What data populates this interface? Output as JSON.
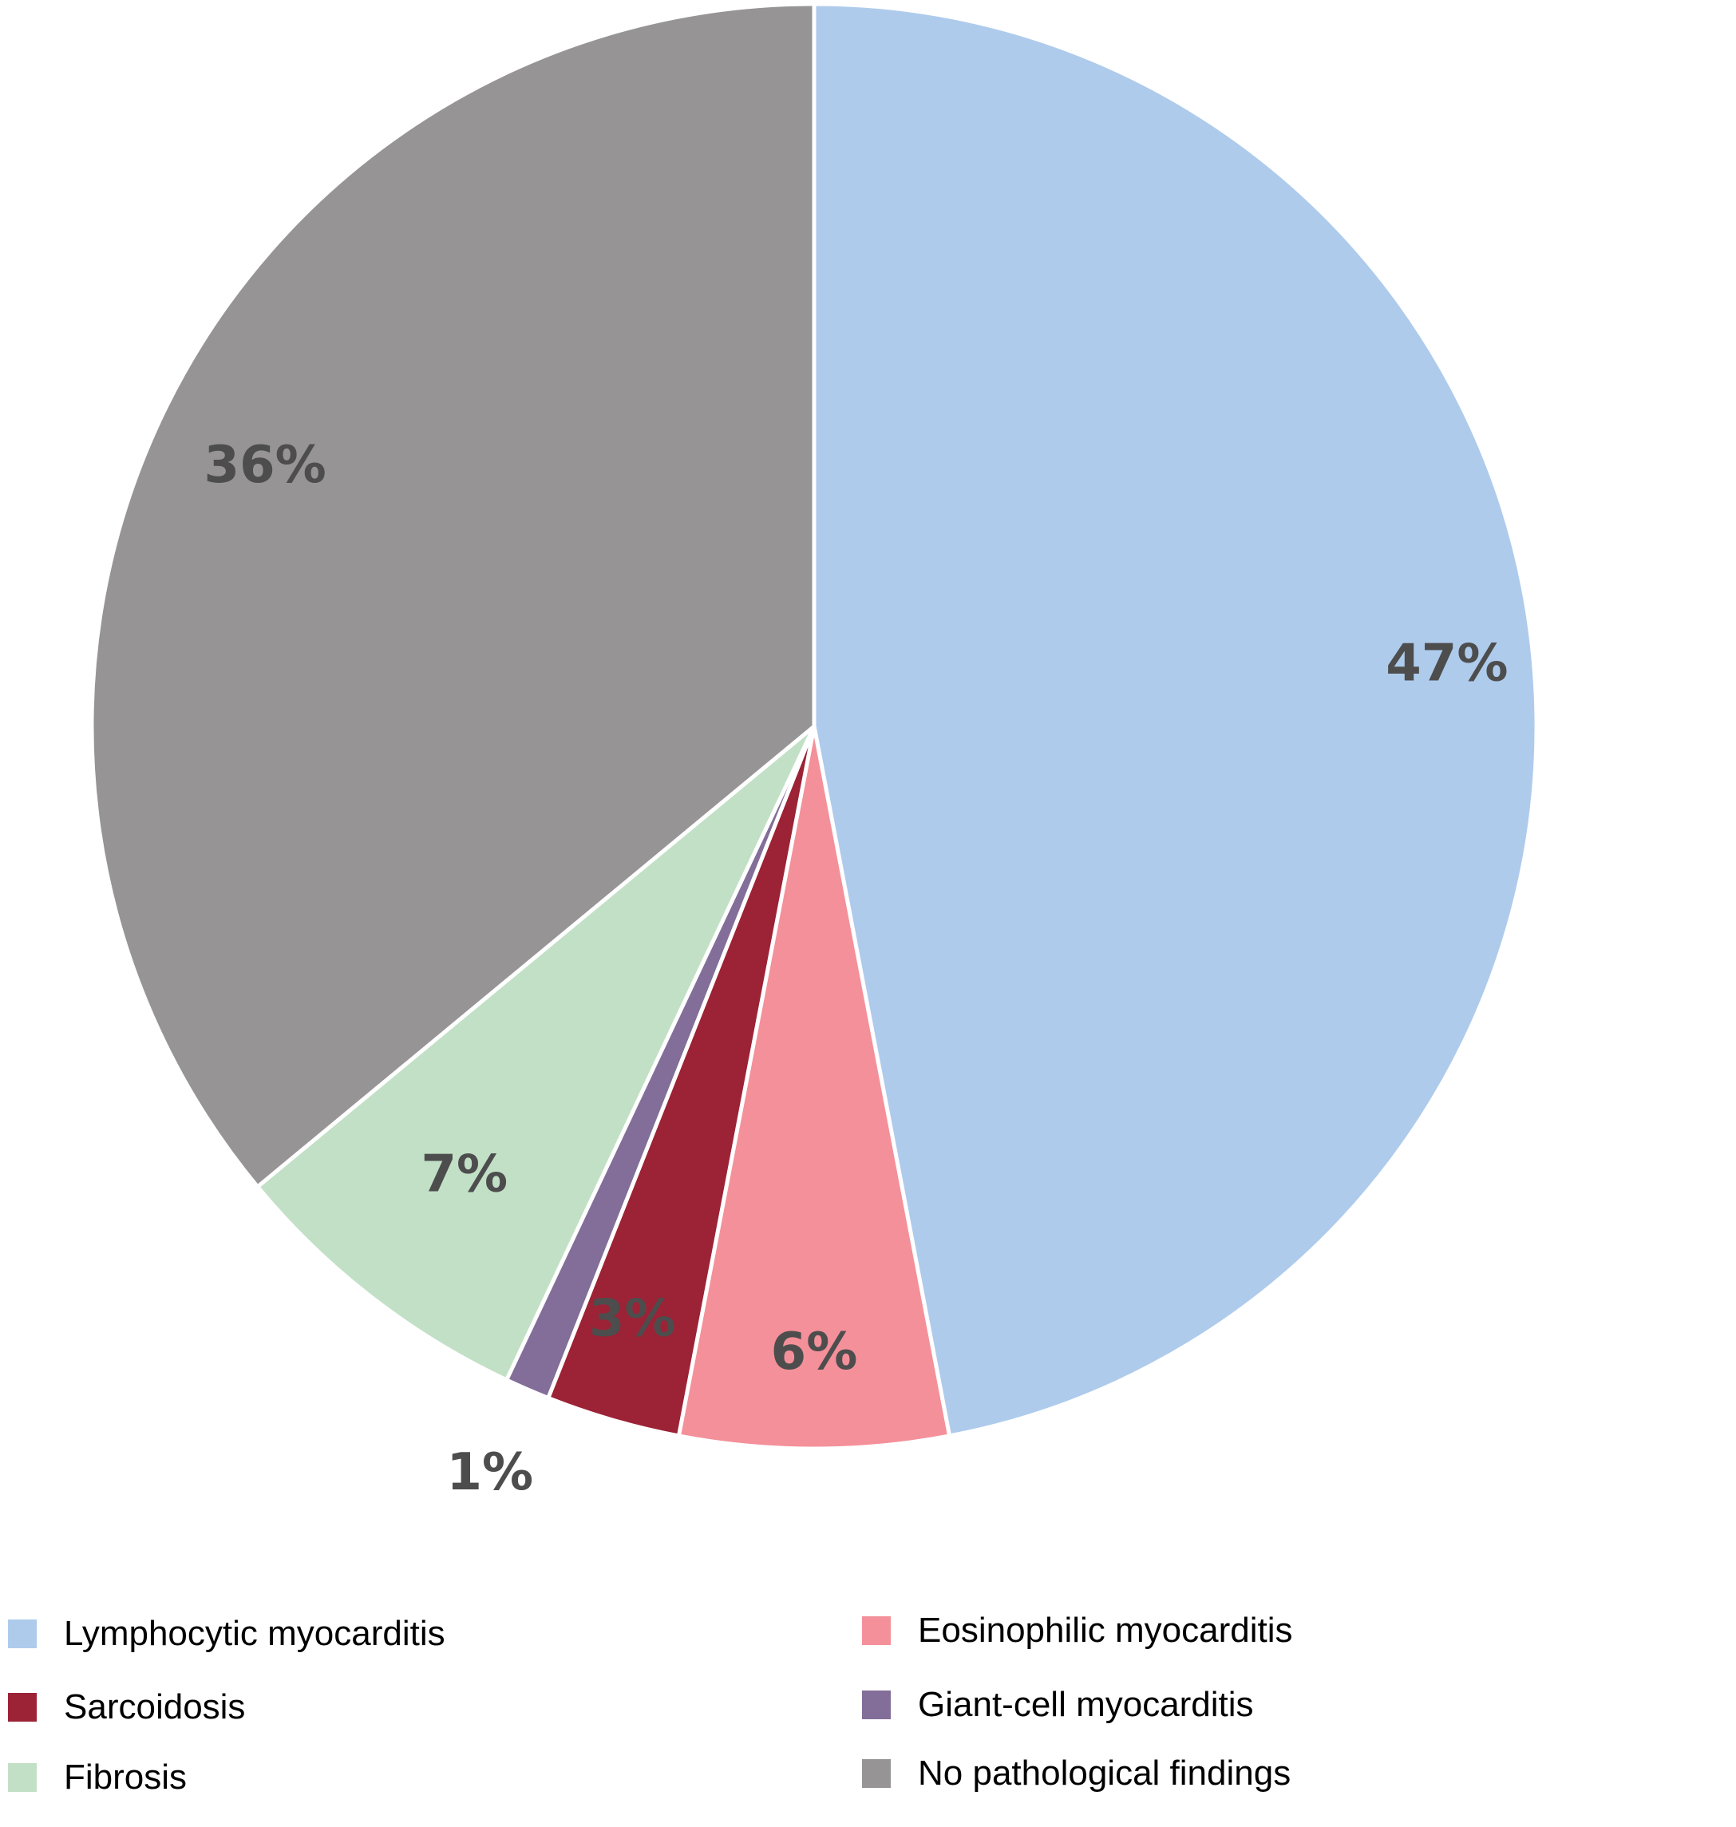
{
  "chart_data": {
    "type": "pie",
    "start_angle_deg": 0,
    "direction": "clockwise",
    "slices": [
      {
        "name": "Lymphocytic myocarditis",
        "value": 47,
        "label": "47%",
        "color": "#aecbec"
      },
      {
        "name": "Eosinophilic myocarditis",
        "value": 6,
        "label": "6%",
        "color": "#f4909a"
      },
      {
        "name": "Sarcoidosis",
        "value": 3,
        "label": "3%",
        "color": "#9c2236"
      },
      {
        "name": "Giant-cell myocarditis",
        "value": 1,
        "label": "1%",
        "color": "#826e99"
      },
      {
        "name": "Fibrosis",
        "value": 7,
        "label": "7%",
        "color": "#c2e0c6"
      },
      {
        "name": "No pathological findings",
        "value": 36,
        "label": "36%",
        "color": "#969495"
      }
    ],
    "legend": {
      "placement": "bottom",
      "columns": 2,
      "entries": [
        {
          "label": "Lymphocytic myocarditis",
          "color": "#aecbec"
        },
        {
          "label": "Eosinophilic myocarditis",
          "color": "#f4909a"
        },
        {
          "label": "Sarcoidosis",
          "color": "#9c2236"
        },
        {
          "label": "Giant-cell myocarditis",
          "color": "#826e99"
        },
        {
          "label": "Fibrosis",
          "color": "#c2e0c6"
        },
        {
          "label": "No pathological findings",
          "color": "#969495"
        }
      ]
    }
  }
}
